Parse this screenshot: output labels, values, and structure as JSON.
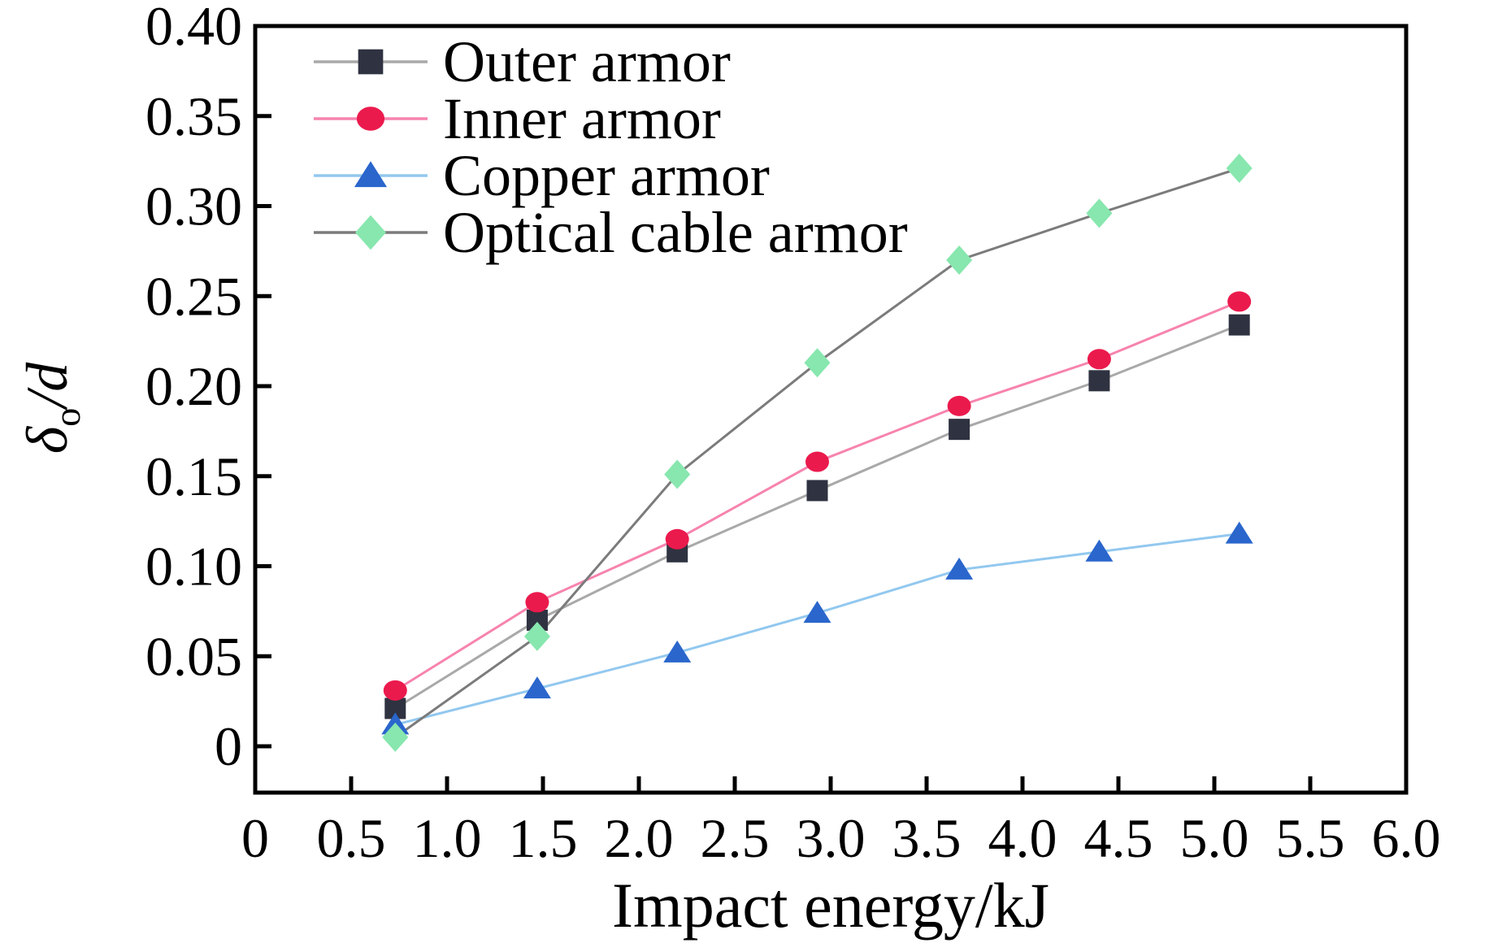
{
  "figure": {
    "xlabel": "Impact energy/kJ",
    "ylabel": {
      "delta": "δ",
      "sub": "o",
      "rest": "/d"
    },
    "background_color": "#ffffff",
    "axis_color": "#000000",
    "text_color": "#000000"
  },
  "chart_data": {
    "type": "line",
    "title": "",
    "xlabel": "Impact energy/kJ",
    "ylabel": "δo/d",
    "grid": false,
    "legend_position": "top-left",
    "xlim": [
      0,
      6.0
    ],
    "ylim": [
      -0.026,
      0.4
    ],
    "x_ticks": {
      "values": [
        0,
        0.5,
        1.0,
        1.5,
        2.0,
        2.5,
        3.0,
        3.5,
        4.0,
        4.5,
        5.0,
        5.5,
        6.0
      ],
      "labels": [
        "0",
        "0.5",
        "1.0",
        "1.5",
        "2.0",
        "2.5",
        "3.0",
        "3.5",
        "4.0",
        "4.5",
        "5.0",
        "5.5",
        "6.0"
      ],
      "marks": [
        0.5,
        1.0,
        1.5,
        2.0,
        2.5,
        3.0,
        3.5,
        4.0,
        4.5,
        5.0,
        5.5
      ]
    },
    "y_ticks": {
      "values": [
        0,
        0.05,
        0.1,
        0.15,
        0.2,
        0.25,
        0.3,
        0.35,
        0.4
      ],
      "labels": [
        "0",
        "0.05",
        "0.10",
        "0.15",
        "0.20",
        "0.25",
        "0.30",
        "0.35",
        "0.40"
      ],
      "marks": [
        0,
        0.05,
        0.1,
        0.15,
        0.2,
        0.25,
        0.3,
        0.35
      ]
    },
    "x": [
      0.73,
      1.47,
      2.2,
      2.93,
      3.67,
      4.4,
      5.13
    ],
    "series": [
      {
        "name": "Outer armor",
        "marker": "square",
        "marker_color": "#2f3240",
        "line_color": "#a9a9a9",
        "values": [
          0.021,
          0.07,
          0.108,
          0.142,
          0.176,
          0.203,
          0.234
        ]
      },
      {
        "name": "Inner armor",
        "marker": "circle",
        "marker_color": "#eb1a4d",
        "line_color": "#f783ae",
        "values": [
          0.031,
          0.08,
          0.115,
          0.158,
          0.189,
          0.215,
          0.247
        ]
      },
      {
        "name": "Copper armor",
        "marker": "triangle",
        "marker_color": "#2a66cc",
        "line_color": "#92c8ef",
        "values": [
          0.012,
          0.032,
          0.052,
          0.074,
          0.098,
          0.108,
          0.118
        ]
      },
      {
        "name": "Optical cable armor",
        "marker": "diamond",
        "marker_color": "#87e7ae",
        "line_color": "#7b7b7b",
        "values": [
          0.005,
          0.061,
          0.151,
          0.213,
          0.27,
          0.296,
          0.321
        ]
      }
    ]
  }
}
